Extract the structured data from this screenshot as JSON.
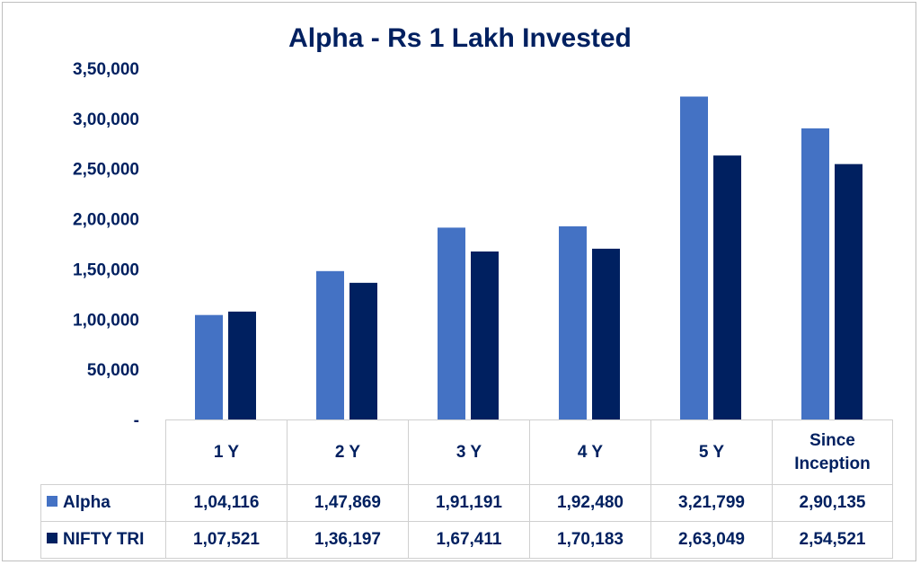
{
  "chart_data": {
    "type": "bar",
    "title": "Alpha - Rs 1 Lakh Invested",
    "xlabel": "",
    "ylabel": "",
    "ylim": [
      0,
      350000
    ],
    "yticks": [
      0,
      50000,
      100000,
      150000,
      200000,
      250000,
      300000,
      350000
    ],
    "ytick_labels": [
      "-",
      "50,000",
      "1,00,000",
      "1,50,000",
      "2,00,000",
      "2,50,000",
      "3,00,000",
      "3,50,000"
    ],
    "categories": [
      "1 Y",
      "2 Y",
      "3 Y",
      "4 Y",
      "5 Y",
      "Since Inception"
    ],
    "grid": false,
    "legend": "data table below chart",
    "series": [
      {
        "name": "Alpha",
        "color": "#4472C4",
        "values": [
          104116,
          147869,
          191191,
          192480,
          321799,
          290135
        ],
        "labels": [
          "1,04,116",
          "1,47,869",
          "1,91,191",
          "1,92,480",
          "3,21,799",
          "2,90,135"
        ]
      },
      {
        "name": "NIFTY TRI",
        "color": "#002060",
        "values": [
          107521,
          136197,
          167411,
          170183,
          263049,
          254521
        ],
        "labels": [
          "1,07,521",
          "1,36,197",
          "1,67,411",
          "1,70,183",
          "2,63,049",
          "2,54,521"
        ]
      }
    ]
  }
}
